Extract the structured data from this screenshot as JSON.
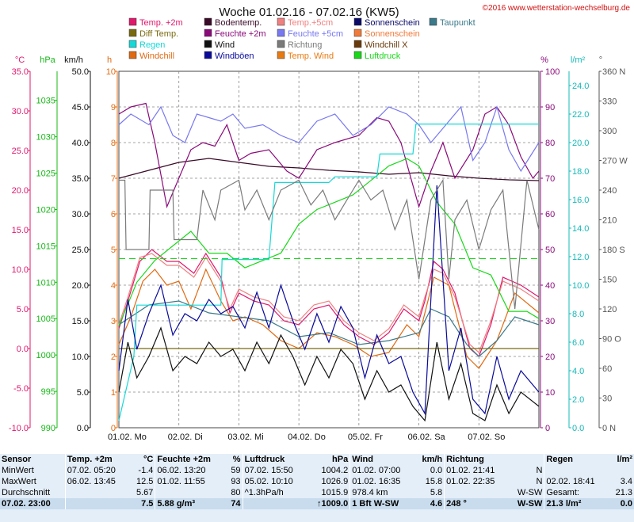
{
  "header": {
    "title": "Woche 01.02.16 - 07.02.16 (KW5)",
    "copyright": "©2016 www.wetterstation-wechselburg.de"
  },
  "legend": [
    {
      "label": "Temp. +2m",
      "color": "#e0186c"
    },
    {
      "label": "Diff Temp.",
      "color": "#7a6a10"
    },
    {
      "label": "Regen",
      "color": "#16d8d8"
    },
    {
      "label": "Windchill",
      "color": "#e06a12"
    },
    {
      "label": "Bodentemp.",
      "color": "#3a0a28"
    },
    {
      "label": "Feuchte +2m",
      "color": "#8a0a7a"
    },
    {
      "label": "Wind",
      "color": "#111111"
    },
    {
      "label": "Windböen",
      "color": "#0a0a9a"
    },
    {
      "label": "Temp.+5cm",
      "color": "#f08080"
    },
    {
      "label": "Feuchte +5cm",
      "color": "#7878f0"
    },
    {
      "label": "Richtung",
      "color": "#7a7a7a"
    },
    {
      "label": "Temp. Wind",
      "color": "#e87a12"
    },
    {
      "label": "Sonnenschein",
      "color": "#0a0a6a"
    },
    {
      "label": "Sonnenschein",
      "color": "#f07a3a"
    },
    {
      "label": "Windchill X",
      "color": "#6a3a0a"
    },
    {
      "label": "Luftdruck",
      "color": "#18d818"
    },
    {
      "label": "Taupunkt",
      "color": "#3a7a8a"
    }
  ],
  "axis_headers": {
    "temp": "°C",
    "press": "hPa",
    "wind": "km/h",
    "sun": "h",
    "hum": "%",
    "rain": "l/m²",
    "dir": "°"
  },
  "colors": {
    "temp": "#e0186c",
    "press": "#18d818",
    "wind": "#111111",
    "sun": "#e06a12",
    "hum": "#8a0a7a",
    "rain": "#16d8d8",
    "dir": "#7a7a7a"
  },
  "chart_data": {
    "type": "line",
    "title": "Woche 01.02.16 - 07.02.16 (KW5)",
    "x": {
      "categories": [
        "01.02. Mo",
        "02.02. Di",
        "03.02. Mi",
        "04.02. Do",
        "05.02. Fr",
        "06.02. Sa",
        "07.02. So"
      ],
      "range": [
        0,
        7
      ]
    },
    "axes": {
      "temp": {
        "unit": "°C",
        "range": [
          -10,
          35
        ],
        "ticks": [
          "35.0",
          "30.0",
          "25.0",
          "20.0",
          "15.0",
          "10.0",
          "5.0",
          "0.0",
          "-5.0",
          "-10.0"
        ]
      },
      "press": {
        "unit": "hPa",
        "range": [
          990,
          1039
        ],
        "ticks": [
          "1035",
          "1030",
          "1025",
          "1020",
          "1015",
          "1010",
          "1005",
          "1000",
          "995",
          "990"
        ]
      },
      "wind": {
        "unit": "km/h",
        "range": [
          0,
          50
        ],
        "ticks": [
          "50.0",
          "45.0",
          "40.0",
          "35.0",
          "30.0",
          "25.0",
          "20.0",
          "15.0",
          "10.0",
          "5.0",
          "0.0"
        ]
      },
      "sun": {
        "unit": "h",
        "range": [
          0,
          10
        ],
        "ticks": [
          "10",
          "9",
          "8",
          "7",
          "6",
          "5",
          "4",
          "3",
          "2",
          "1",
          "0"
        ]
      },
      "hum": {
        "unit": "%",
        "range": [
          0,
          100
        ],
        "ticks": [
          "100",
          "90",
          "80",
          "70",
          "60",
          "50",
          "40",
          "30",
          "20",
          "10",
          "0"
        ]
      },
      "rain": {
        "unit": "l/m²",
        "range": [
          0,
          25
        ],
        "ticks": [
          "24.0",
          "22.0",
          "20.0",
          "18.0",
          "16.0",
          "14.0",
          "12.0",
          "10.0",
          "8.0",
          "6.0",
          "4.0",
          "2.0",
          "0.0"
        ]
      },
      "dir": {
        "unit": "°",
        "range": [
          0,
          360
        ],
        "ticks": [
          "360 N",
          "330",
          "300",
          "270 W",
          "240",
          "210",
          "180 S",
          "150",
          "120",
          "90 O",
          "60",
          "30",
          "0 N"
        ]
      }
    },
    "series": [
      {
        "name": "Temp. +2m",
        "axis": "temp",
        "color": "#e0186c",
        "x": [
          0,
          0.15,
          0.35,
          0.55,
          0.8,
          1,
          1.25,
          1.45,
          1.7,
          1.85,
          2,
          2.25,
          2.5,
          2.75,
          3,
          3.25,
          3.5,
          3.75,
          4,
          4.25,
          4.5,
          4.75,
          5,
          5.1,
          5.25,
          5.4,
          5.6,
          5.85,
          6,
          6.2,
          6.4,
          6.7,
          7
        ],
        "y": [
          2.5,
          6,
          11,
          12.5,
          11,
          11,
          9.5,
          12,
          9,
          4.5,
          7,
          6,
          5.5,
          3.5,
          3,
          5,
          5.5,
          3,
          1.5,
          0.5,
          2,
          5,
          3.5,
          6,
          11,
          10,
          7,
          0,
          -1,
          3,
          9,
          8,
          6.5
        ]
      },
      {
        "name": "Temp.+5cm",
        "axis": "temp",
        "color": "#f08080",
        "x": [
          0,
          0.15,
          0.35,
          0.55,
          0.8,
          1,
          1.25,
          1.45,
          1.7,
          1.85,
          2,
          2.25,
          2.5,
          2.75,
          3,
          3.25,
          3.5,
          3.75,
          4,
          4.25,
          4.5,
          4.75,
          5,
          5.1,
          5.25,
          5.4,
          5.6,
          5.85,
          6,
          6.2,
          6.4,
          6.7,
          7
        ],
        "y": [
          3,
          6.5,
          11.5,
          12,
          10.5,
          10.5,
          9,
          11.5,
          8.5,
          5,
          7.5,
          6.5,
          6,
          4,
          3.5,
          5.5,
          6,
          3.5,
          2,
          1,
          2.5,
          5.5,
          4,
          6.5,
          10,
          9.5,
          6.5,
          0.5,
          -0.5,
          3.5,
          8.5,
          7.5,
          6
        ]
      },
      {
        "name": "Windchill",
        "axis": "temp",
        "color": "#e06a12",
        "x": [
          0,
          0.2,
          0.4,
          0.6,
          0.8,
          1,
          1.2,
          1.45,
          1.7,
          1.9,
          2.1,
          2.4,
          2.7,
          3,
          3.3,
          3.6,
          3.9,
          4.2,
          4.5,
          4.8,
          5,
          5.25,
          5.5,
          5.8,
          6,
          6.3,
          6.6,
          7
        ],
        "y": [
          0.5,
          4,
          8.5,
          10,
          8,
          8.5,
          5,
          10,
          6,
          3.5,
          4,
          3,
          1,
          0,
          2,
          1.5,
          0.5,
          -1,
          -0.5,
          3,
          1.5,
          9,
          8,
          -1,
          -2.5,
          1,
          7,
          4.5
        ]
      },
      {
        "name": "Taupunkt",
        "axis": "temp",
        "color": "#3a7a8a",
        "x": [
          0,
          0.5,
          1,
          1.5,
          2,
          2.5,
          3,
          3.5,
          4,
          4.5,
          5,
          5.2,
          5.5,
          5.8,
          6,
          6.3,
          6.6,
          7
        ],
        "y": [
          3,
          5.5,
          6,
          4.5,
          4,
          3.5,
          1.5,
          2,
          0.5,
          1,
          2,
          5,
          4,
          0.5,
          -1,
          1,
          4,
          3
        ]
      },
      {
        "name": "Bodentemp.",
        "axis": "temp",
        "color": "#3a0a28",
        "x": [
          0,
          0.5,
          1,
          1.5,
          2,
          2.5,
          3,
          3.5,
          4,
          4.5,
          5,
          5.5,
          6,
          6.5,
          7
        ],
        "y": [
          21.5,
          22.5,
          23.5,
          24,
          23.5,
          23,
          22.8,
          22.5,
          22.3,
          22,
          22.2,
          21.8,
          21.5,
          21.3,
          21.2
        ]
      },
      {
        "name": "Diff Temp.",
        "axis": "temp",
        "color": "#7a6a10",
        "x": [
          0,
          7
        ],
        "y": [
          0,
          0
        ]
      },
      {
        "name": "Feuchte +2m",
        "axis": "hum",
        "color": "#8a0a7a",
        "x": [
          0,
          0.2,
          0.45,
          0.6,
          0.8,
          1,
          1.2,
          1.4,
          1.6,
          1.8,
          2,
          2.2,
          2.5,
          2.8,
          3,
          3.3,
          3.6,
          4,
          4.3,
          4.5,
          4.7,
          5,
          5.2,
          5.4,
          5.6,
          5.9,
          6.1,
          6.3,
          6.5,
          6.7,
          6.9,
          7
        ],
        "y": [
          88,
          90,
          91,
          80,
          62,
          70,
          78,
          80,
          79,
          85,
          75,
          77,
          78,
          72,
          70,
          78,
          80,
          82,
          87,
          86,
          80,
          62,
          72,
          80,
          70,
          78,
          88,
          90,
          85,
          76,
          70,
          72
        ]
      },
      {
        "name": "Feuchte +5cm",
        "axis": "hum",
        "color": "#7878f0",
        "x": [
          0,
          0.2,
          0.5,
          0.7,
          0.9,
          1.1,
          1.3,
          1.5,
          1.7,
          1.9,
          2.1,
          2.4,
          2.7,
          3,
          3.3,
          3.6,
          3.9,
          4.2,
          4.5,
          4.8,
          5,
          5.2,
          5.4,
          5.7,
          5.9,
          6.1,
          6.3,
          6.5,
          6.7,
          7
        ],
        "y": [
          85,
          88,
          85,
          90,
          82,
          80,
          88,
          87,
          86,
          88,
          84,
          85,
          82,
          80,
          86,
          88,
          82,
          85,
          90,
          88,
          85,
          80,
          84,
          90,
          75,
          80,
          90,
          78,
          72,
          80
        ]
      },
      {
        "name": "Luftdruck",
        "axis": "press",
        "color": "#18d818",
        "x": [
          0,
          0.3,
          0.6,
          0.9,
          1.2,
          1.5,
          1.8,
          2.1,
          2.4,
          2.7,
          3,
          3.3,
          3.6,
          3.9,
          4.2,
          4.5,
          4.8,
          5,
          5.3,
          5.6,
          5.9,
          6.2,
          6.5,
          6.8,
          7
        ],
        "y": [
          1004,
          1010,
          1013,
          1015,
          1017,
          1014,
          1014,
          1012,
          1013,
          1014,
          1018,
          1020,
          1021,
          1022,
          1024,
          1026,
          1027,
          1026,
          1021,
          1018,
          1012,
          1011,
          1006,
          1006,
          1005
        ]
      },
      {
        "name": "Regen",
        "axis": "rain",
        "color": "#16d8d8",
        "x": [
          0,
          0.25,
          0.3,
          1.7,
          1.72,
          2,
          2.5,
          2.6,
          3.5,
          3.6,
          4.3,
          4.35,
          4.9,
          4.95,
          5.5,
          5.55,
          7
        ],
        "y": [
          0.5,
          5,
          8.6,
          8.6,
          11.8,
          11.8,
          11.8,
          17.2,
          17.2,
          17.6,
          17.6,
          19.2,
          19.2,
          21.3,
          21.3,
          21.3,
          21.3
        ]
      },
      {
        "name": "Wind",
        "axis": "wind",
        "color": "#111111",
        "x": [
          0,
          0.15,
          0.3,
          0.5,
          0.7,
          0.9,
          1.1,
          1.3,
          1.5,
          1.7,
          1.9,
          2.1,
          2.3,
          2.5,
          2.7,
          2.9,
          3.1,
          3.3,
          3.5,
          3.7,
          3.9,
          4.1,
          4.3,
          4.5,
          4.7,
          4.9,
          5.1,
          5.3,
          5.5,
          5.7,
          5.9,
          6.1,
          6.3,
          6.5,
          6.7,
          7
        ],
        "y": [
          5,
          12,
          7,
          10,
          14,
          8,
          10,
          9,
          12,
          10,
          11,
          8,
          12,
          9,
          13,
          10,
          6,
          10,
          7,
          11,
          9,
          4,
          8,
          5,
          6,
          3,
          1,
          12,
          4,
          9,
          2,
          1,
          6,
          2,
          5,
          3
        ]
      },
      {
        "name": "Windböen",
        "axis": "wind",
        "color": "#0a0a9a",
        "x": [
          0,
          0.15,
          0.3,
          0.5,
          0.7,
          0.9,
          1.1,
          1.3,
          1.5,
          1.7,
          1.9,
          2.1,
          2.3,
          2.5,
          2.7,
          2.9,
          3.1,
          3.3,
          3.5,
          3.7,
          3.9,
          4.1,
          4.3,
          4.5,
          4.7,
          4.9,
          5.1,
          5.3,
          5.5,
          5.7,
          5.9,
          6.1,
          6.3,
          6.5,
          6.7,
          7
        ],
        "y": [
          8,
          18,
          11,
          16,
          20,
          13,
          16,
          15,
          18,
          16,
          17,
          14,
          19,
          14,
          20,
          15,
          11,
          16,
          12,
          17,
          14,
          7,
          13,
          9,
          10,
          5,
          2,
          34,
          8,
          14,
          4,
          2,
          10,
          4,
          8,
          5
        ]
      },
      {
        "name": "Richtung",
        "axis": "dir",
        "color": "#7a7a7a",
        "x": [
          0,
          0.1,
          0.12,
          0.5,
          0.52,
          0.9,
          0.92,
          1.3,
          1.4,
          1.6,
          1.7,
          2.0,
          2.1,
          2.3,
          2.5,
          2.7,
          3.0,
          3.2,
          3.4,
          3.6,
          3.8,
          4.0,
          4.2,
          4.4,
          4.6,
          4.8,
          5.0,
          5.2,
          5.4,
          5.5,
          5.6,
          5.8,
          6.0,
          6.2,
          6.4,
          6.6,
          6.8,
          7
        ],
        "y": [
          250,
          250,
          180,
          180,
          240,
          240,
          190,
          190,
          240,
          210,
          240,
          250,
          220,
          240,
          210,
          240,
          250,
          225,
          240,
          210,
          230,
          250,
          230,
          240,
          200,
          230,
          150,
          230,
          250,
          150,
          210,
          230,
          180,
          220,
          240,
          120,
          250,
          200
        ]
      }
    ],
    "grid": true
  },
  "stats": {
    "header": [
      "Sensor",
      "Temp. +2m",
      "°C",
      "Feuchte +2m",
      "%",
      "Luftdruck",
      "hPa",
      "Wind",
      "km/h",
      "Richtung",
      "",
      "Regen",
      "l/m²"
    ],
    "rows": [
      [
        "MinWert",
        "07.02.  05:20",
        "-1.4",
        "06.02.  13:20",
        "59",
        "07.02.  15:50",
        "1004.2",
        "01.02.  07:00",
        "0.0",
        "01.02.  21:41",
        "N",
        "",
        ""
      ],
      [
        "MaxWert",
        "06.02.  13:45",
        "12.5",
        "01.02.  11:55",
        "93",
        "05.02.  10:10",
        "1026.9",
        "01.02.  16:35",
        "15.8",
        "01.02.  22:35",
        "N",
        "02.02.  18:41",
        "3.4"
      ],
      [
        "Durchschnitt",
        "",
        "5.67",
        "",
        "80",
        "^1.3hPa/h",
        "1015.9",
        "978.4 km",
        "5.8",
        "",
        "W-SW",
        "Gesamt:",
        "21.3"
      ],
      [
        "07.02. 23:00",
        "",
        "7.5",
        "5.88 g/m³",
        "74",
        "",
        "↑1009.0",
        "1 Bft W-SW",
        "4.6",
        "248 °",
        "W-SW",
        "21.3 l/m²",
        "0.0"
      ]
    ]
  }
}
